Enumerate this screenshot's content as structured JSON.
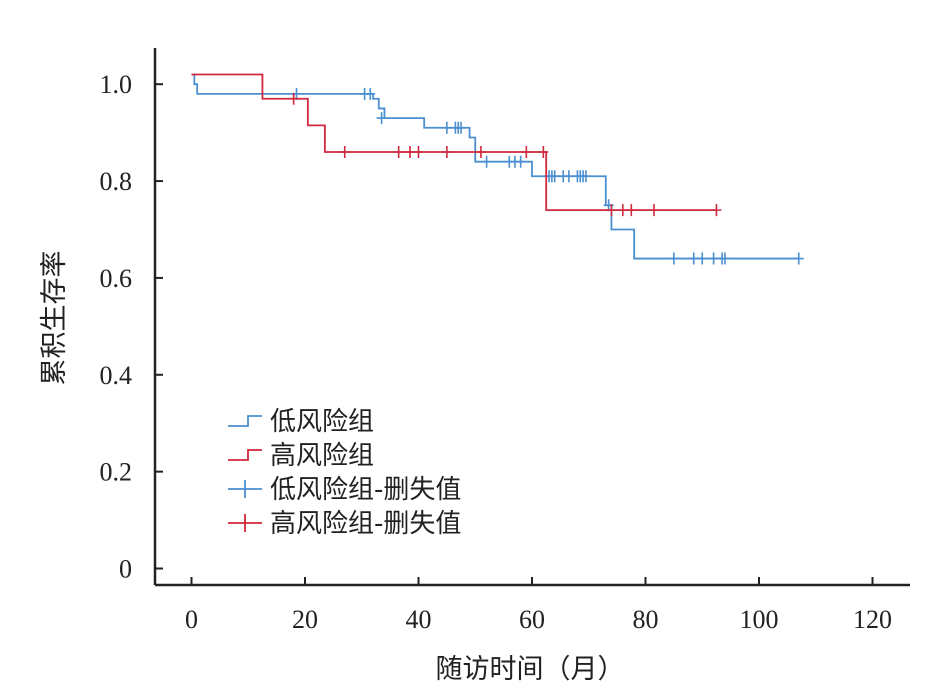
{
  "chart_data": {
    "type": "line",
    "subtype": "kaplan-meier",
    "title": "",
    "xlabel": "随访时间（月）",
    "ylabel": "累积生存率",
    "xlim": [
      -6,
      126
    ],
    "ylim": [
      -0.03,
      1.08
    ],
    "x_ticks": [
      0,
      20,
      40,
      60,
      80,
      100,
      120
    ],
    "x_tick_labels": [
      "0",
      "20",
      "40",
      "60",
      "80",
      "100",
      "120"
    ],
    "y_ticks": [
      0,
      0.2,
      0.4,
      0.6,
      0.8,
      1.0
    ],
    "y_tick_labels": [
      "0",
      "0.2",
      "0.4",
      "0.6",
      "0.8",
      "1.0"
    ],
    "grid": false,
    "legend_position": "lower-left",
    "legend": [
      "低风险组",
      "高风险组",
      "低风险组-删失值",
      "高风险组-删失值"
    ],
    "series": [
      {
        "name": "低风险组",
        "censor_name": "低风险组-删失值",
        "color": "#4a8fd0",
        "steps": [
          [
            0,
            1.02
          ],
          [
            0.5,
            1.0
          ],
          [
            1,
            0.98
          ],
          [
            32,
            0.97
          ],
          [
            33,
            0.95
          ],
          [
            34,
            0.93
          ],
          [
            41,
            0.91
          ],
          [
            49,
            0.89
          ],
          [
            50,
            0.84
          ],
          [
            60,
            0.81
          ],
          [
            73,
            0.75
          ],
          [
            74,
            0.7
          ],
          [
            78,
            0.64
          ],
          [
            107,
            0.64
          ]
        ],
        "censored": [
          [
            18.5,
            0.98
          ],
          [
            30.5,
            0.98
          ],
          [
            31.5,
            0.98
          ],
          [
            33.5,
            0.93
          ],
          [
            45,
            0.91
          ],
          [
            46.5,
            0.91
          ],
          [
            47,
            0.91
          ],
          [
            47.5,
            0.91
          ],
          [
            52,
            0.84
          ],
          [
            56,
            0.84
          ],
          [
            57,
            0.84
          ],
          [
            58,
            0.84
          ],
          [
            63,
            0.81
          ],
          [
            63.5,
            0.81
          ],
          [
            64,
            0.81
          ],
          [
            65.5,
            0.81
          ],
          [
            66.5,
            0.81
          ],
          [
            68,
            0.81
          ],
          [
            68.5,
            0.81
          ],
          [
            69,
            0.81
          ],
          [
            69.5,
            0.81
          ],
          [
            73.5,
            0.75
          ],
          [
            85,
            0.64
          ],
          [
            88.5,
            0.64
          ],
          [
            90,
            0.64
          ],
          [
            92,
            0.64
          ],
          [
            93.5,
            0.64
          ],
          [
            94,
            0.64
          ],
          [
            107,
            0.64
          ]
        ]
      },
      {
        "name": "高风险组",
        "censor_name": "高风险组-删失值",
        "color": "#d0283c",
        "steps": [
          [
            0,
            1.02
          ],
          [
            12.5,
            0.97
          ],
          [
            20.5,
            0.915
          ],
          [
            23.5,
            0.86
          ],
          [
            62.5,
            0.74
          ],
          [
            92.5,
            0.74
          ]
        ],
        "censored": [
          [
            18,
            0.97
          ],
          [
            27,
            0.86
          ],
          [
            36.5,
            0.86
          ],
          [
            38.5,
            0.86
          ],
          [
            40,
            0.86
          ],
          [
            45,
            0.86
          ],
          [
            51,
            0.86
          ],
          [
            59,
            0.86
          ],
          [
            62,
            0.86
          ],
          [
            74,
            0.74
          ],
          [
            76,
            0.74
          ],
          [
            77.5,
            0.74
          ],
          [
            81.5,
            0.74
          ],
          [
            92.5,
            0.74
          ]
        ]
      }
    ]
  }
}
